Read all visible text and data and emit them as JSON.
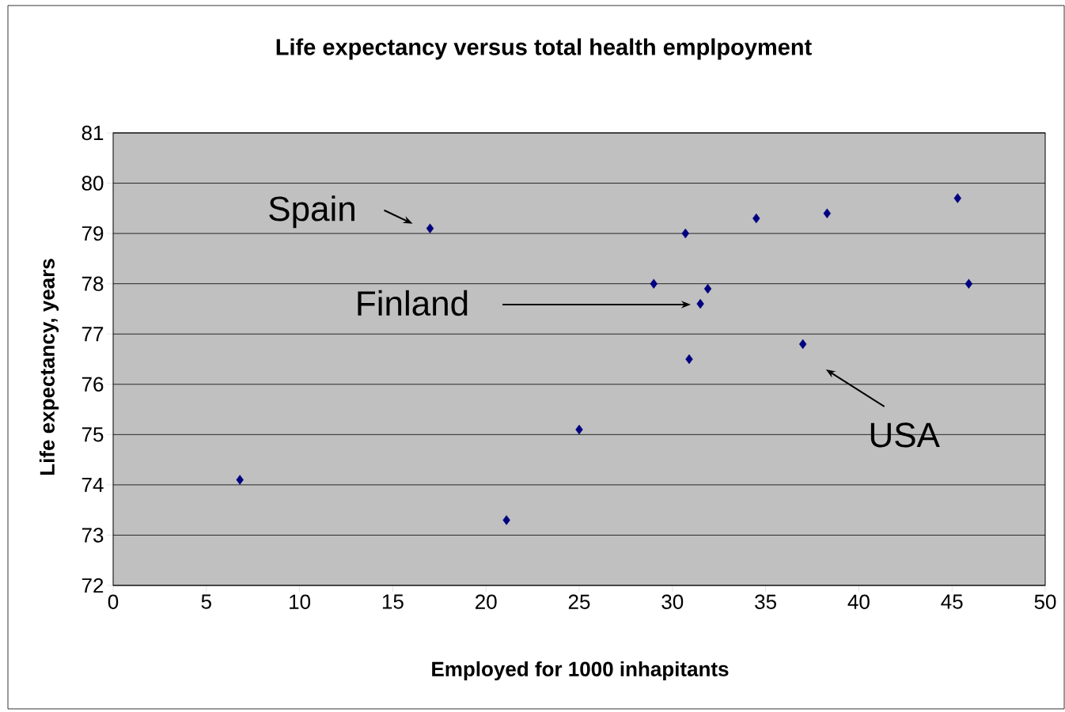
{
  "chart_data": {
    "type": "scatter",
    "title": "Life expectancy versus total health emplpoyment",
    "xlabel": "Employed for 1000 inhapitants",
    "ylabel": "Life expectancy, years",
    "x": [
      6.8,
      17,
      21.1,
      25,
      29,
      30.7,
      30.9,
      31.5,
      31.9,
      34.5,
      37,
      38.3,
      45.3,
      45.9
    ],
    "series": [
      {
        "color": "#000080",
        "values": [
          74.1,
          79.1,
          73.3,
          75.1,
          78.0,
          79.0,
          76.5,
          77.6,
          77.9,
          79.3,
          76.8,
          79.4,
          79.7,
          78.0
        ]
      }
    ],
    "xlim": [
      0,
      50
    ],
    "xticks": [
      0,
      5,
      10,
      15,
      20,
      25,
      30,
      35,
      40,
      45,
      50
    ],
    "ylim": [
      72,
      81
    ],
    "yticks": [
      72,
      73,
      74,
      75,
      76,
      77,
      78,
      79,
      80,
      81
    ],
    "grid": "y",
    "marker": "diamond",
    "annotations": [
      {
        "text": "Spain",
        "x": 17,
        "y": 79.1
      },
      "Finland",
      {
        "text": "USA",
        "x": 37,
        "y": 76.8
      }
    ]
  }
}
